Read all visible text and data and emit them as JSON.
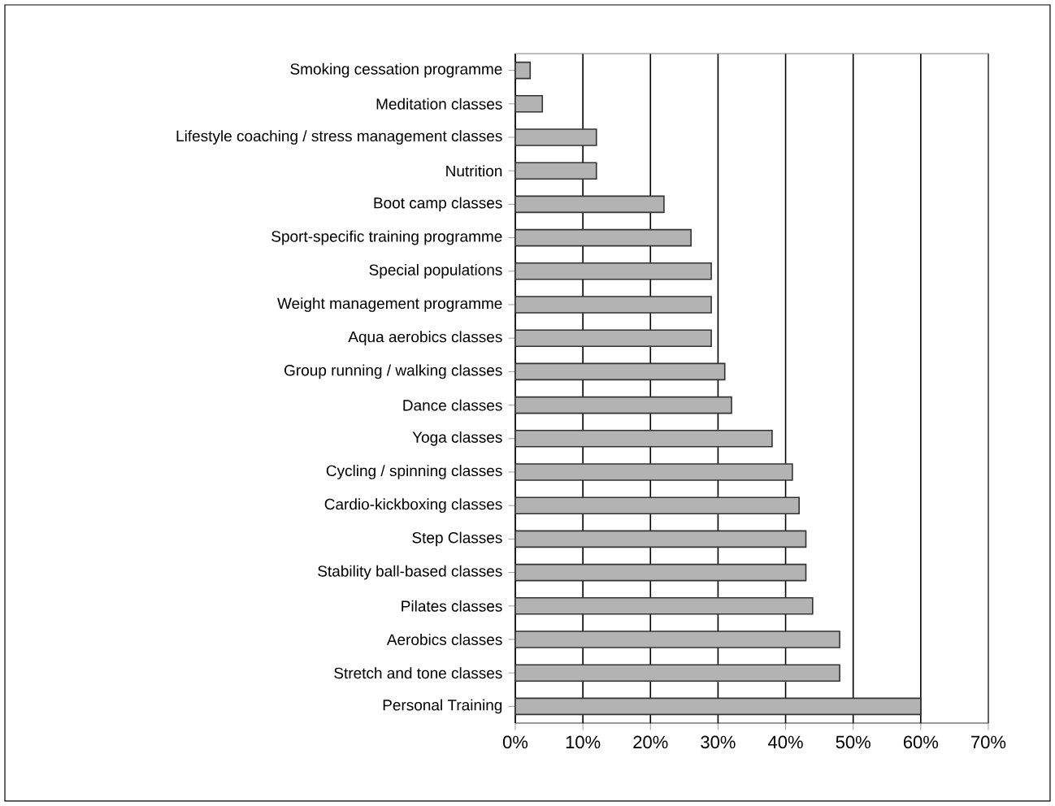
{
  "chart_data": {
    "type": "bar",
    "orientation": "horizontal",
    "categories": [
      "Smoking cessation programme",
      "Meditation classes",
      "Lifestyle coaching / stress management classes",
      "Nutrition",
      "Boot camp classes",
      "Sport-specific training programme",
      "Special populations",
      "Weight management programme",
      "Aqua aerobics classes",
      "Group running / walking classes",
      "Dance classes",
      "Yoga classes",
      "Cycling / spinning classes",
      "Cardio-kickboxing classes",
      "Step Classes",
      "Stability ball-based classes",
      "Pilates classes",
      "Aerobics classes",
      "Stretch and tone classes",
      "Personal Training"
    ],
    "values": [
      2.2,
      4,
      12,
      12,
      22,
      26,
      29,
      29,
      29,
      31,
      32,
      38,
      41,
      42,
      43,
      43,
      44,
      48,
      48,
      60
    ],
    "color": "#b3b3b3",
    "xlim": [
      0,
      70
    ],
    "xticks": [
      {
        "value": 0,
        "label": "0%"
      },
      {
        "value": 10,
        "label": "10%"
      },
      {
        "value": 20,
        "label": "20%"
      },
      {
        "value": 30,
        "label": "30%"
      },
      {
        "value": 40,
        "label": "40%"
      },
      {
        "value": 50,
        "label": "50%"
      },
      {
        "value": 60,
        "label": "60%"
      },
      {
        "value": 70,
        "label": "70%"
      }
    ],
    "grid": "x"
  }
}
